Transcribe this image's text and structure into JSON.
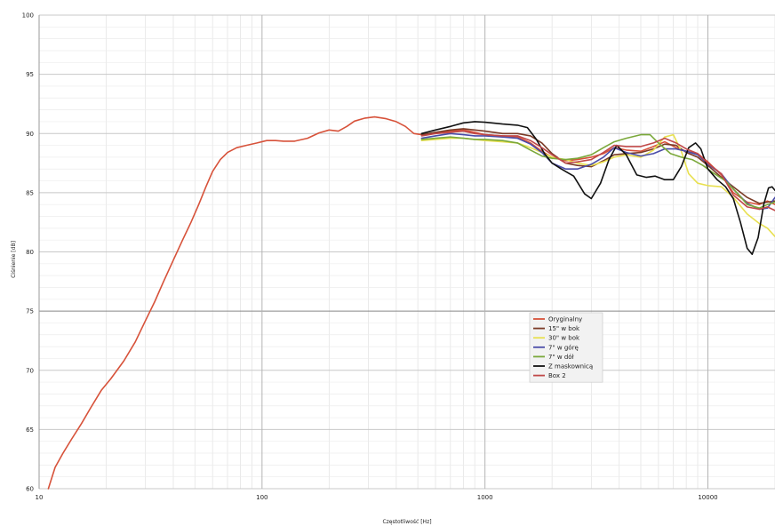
{
  "chart_data": {
    "type": "line",
    "xlabel": "Częstotliwość [Hz]",
    "ylabel": "Ciśnienie [dB]",
    "xscale": "log",
    "xlim": [
      10,
      20000
    ],
    "ylim": [
      60,
      100
    ],
    "x_ticks": [
      "10",
      "100",
      "1000",
      "10000"
    ],
    "y_ticks": [
      "60",
      "65",
      "70",
      "75",
      "80",
      "85",
      "90",
      "95",
      "100"
    ],
    "grid": true,
    "legend_position": "center-right",
    "series": [
      {
        "name": "Oryginalny",
        "color": "#d7523a",
        "points": [
          [
            11,
            60
          ],
          [
            11.8,
            61.8
          ],
          [
            12.8,
            63
          ],
          [
            14,
            64.2
          ],
          [
            15.5,
            65.5
          ],
          [
            17,
            66.8
          ],
          [
            19,
            68.3
          ],
          [
            21,
            69.3
          ],
          [
            24,
            70.8
          ],
          [
            27,
            72.4
          ],
          [
            30,
            74.2
          ],
          [
            33,
            75.8
          ],
          [
            36,
            77.4
          ],
          [
            40,
            79.3
          ],
          [
            44,
            81
          ],
          [
            48,
            82.5
          ],
          [
            52,
            84
          ],
          [
            56,
            85.5
          ],
          [
            60,
            86.8
          ],
          [
            65,
            87.8
          ],
          [
            70,
            88.4
          ],
          [
            77,
            88.8
          ],
          [
            85,
            89
          ],
          [
            95,
            89.2
          ],
          [
            105,
            89.4
          ],
          [
            115,
            89.4
          ],
          [
            125,
            89.35
          ],
          [
            140,
            89.35
          ],
          [
            160,
            89.6
          ],
          [
            180,
            90.05
          ],
          [
            200,
            90.3
          ],
          [
            220,
            90.2
          ],
          [
            240,
            90.6
          ],
          [
            260,
            91.05
          ],
          [
            290,
            91.3
          ],
          [
            320,
            91.4
          ],
          [
            360,
            91.25
          ],
          [
            400,
            91
          ],
          [
            440,
            90.6
          ],
          [
            480,
            90
          ],
          [
            520,
            89.9
          ],
          [
            600,
            90.05
          ],
          [
            700,
            90.2
          ],
          [
            800,
            90.3
          ],
          [
            900,
            90.1
          ],
          [
            1000,
            89.9
          ],
          [
            1200,
            89.8
          ],
          [
            1400,
            89.7
          ],
          [
            1600,
            89.2
          ],
          [
            1800,
            88.5
          ],
          [
            2000,
            88
          ],
          [
            2300,
            87.7
          ],
          [
            2600,
            87.8
          ],
          [
            3000,
            88
          ],
          [
            3400,
            88.3
          ],
          [
            3800,
            88.8
          ],
          [
            4300,
            88.6
          ],
          [
            5000,
            88.5
          ],
          [
            5700,
            88.9
          ],
          [
            6400,
            89.3
          ],
          [
            7200,
            88.8
          ],
          [
            8000,
            88.5
          ],
          [
            9000,
            88.3
          ],
          [
            10000,
            87.6
          ],
          [
            11500,
            86.5
          ],
          [
            13000,
            85
          ],
          [
            15000,
            84.2
          ],
          [
            17000,
            84
          ],
          [
            18500,
            84.3
          ],
          [
            20000,
            84
          ]
        ]
      },
      {
        "name": "15\" w bok",
        "color": "#7a3a26",
        "points": [
          [
            520,
            89.9
          ],
          [
            600,
            90.1
          ],
          [
            700,
            90.3
          ],
          [
            800,
            90.4
          ],
          [
            900,
            90.3
          ],
          [
            1000,
            90.2
          ],
          [
            1200,
            90
          ],
          [
            1400,
            90
          ],
          [
            1600,
            89.8
          ],
          [
            1800,
            89.2
          ],
          [
            2000,
            88.3
          ],
          [
            2300,
            87.5
          ],
          [
            2600,
            87.3
          ],
          [
            3000,
            87.2
          ],
          [
            3400,
            87.7
          ],
          [
            3800,
            88.2
          ],
          [
            4300,
            88.3
          ],
          [
            5000,
            88.4
          ],
          [
            5700,
            88.7
          ],
          [
            6400,
            89.1
          ],
          [
            7200,
            89
          ],
          [
            8000,
            88.4
          ],
          [
            9000,
            88
          ],
          [
            10000,
            87.3
          ],
          [
            11500,
            86.3
          ],
          [
            13000,
            85.5
          ],
          [
            15000,
            84.6
          ],
          [
            17000,
            84.1
          ],
          [
            18500,
            84.2
          ],
          [
            20000,
            84.3
          ]
        ]
      },
      {
        "name": "30\" w bok",
        "color": "#e8e050",
        "points": [
          [
            520,
            89.4
          ],
          [
            600,
            89.5
          ],
          [
            700,
            89.6
          ],
          [
            800,
            89.6
          ],
          [
            900,
            89.5
          ],
          [
            1000,
            89.4
          ],
          [
            1200,
            89.3
          ],
          [
            1400,
            89.2
          ],
          [
            1600,
            88.8
          ],
          [
            1800,
            88.4
          ],
          [
            2000,
            88
          ],
          [
            2300,
            87.8
          ],
          [
            2600,
            87.5
          ],
          [
            3000,
            87.3
          ],
          [
            3400,
            87.6
          ],
          [
            3800,
            88
          ],
          [
            4300,
            88.2
          ],
          [
            5000,
            88
          ],
          [
            5700,
            88.6
          ],
          [
            6400,
            89.7
          ],
          [
            7000,
            89.9
          ],
          [
            7600,
            88.5
          ],
          [
            8200,
            86.6
          ],
          [
            9000,
            85.8
          ],
          [
            10000,
            85.6
          ],
          [
            11500,
            85.5
          ],
          [
            13000,
            84.6
          ],
          [
            15000,
            83.2
          ],
          [
            17000,
            82.4
          ],
          [
            18500,
            82
          ],
          [
            20000,
            81.3
          ]
        ]
      },
      {
        "name": "7\" w górę",
        "color": "#4a4ca8",
        "points": [
          [
            520,
            89.6
          ],
          [
            600,
            89.8
          ],
          [
            700,
            90
          ],
          [
            800,
            89.9
          ],
          [
            900,
            89.8
          ],
          [
            1000,
            89.8
          ],
          [
            1200,
            89.7
          ],
          [
            1400,
            89.6
          ],
          [
            1600,
            89.1
          ],
          [
            1800,
            88.4
          ],
          [
            2000,
            87.5
          ],
          [
            2300,
            87
          ],
          [
            2600,
            87
          ],
          [
            3000,
            87.4
          ],
          [
            3400,
            88
          ],
          [
            3800,
            88.8
          ],
          [
            4300,
            88.4
          ],
          [
            5000,
            88.1
          ],
          [
            5700,
            88.3
          ],
          [
            6400,
            88.7
          ],
          [
            7200,
            88.7
          ],
          [
            8000,
            88.5
          ],
          [
            9000,
            88.2
          ],
          [
            10000,
            87.4
          ],
          [
            11500,
            86.6
          ],
          [
            13000,
            85.3
          ],
          [
            15000,
            84.1
          ],
          [
            17000,
            83.6
          ],
          [
            18500,
            83.7
          ],
          [
            20000,
            84.6
          ]
        ]
      },
      {
        "name": "7\" w dół",
        "color": "#7aa83a",
        "points": [
          [
            520,
            89.5
          ],
          [
            600,
            89.6
          ],
          [
            700,
            89.7
          ],
          [
            800,
            89.6
          ],
          [
            900,
            89.5
          ],
          [
            1000,
            89.5
          ],
          [
            1200,
            89.4
          ],
          [
            1400,
            89.2
          ],
          [
            1600,
            88.6
          ],
          [
            1800,
            88.1
          ],
          [
            2000,
            87.9
          ],
          [
            2300,
            87.8
          ],
          [
            2600,
            87.9
          ],
          [
            3000,
            88.2
          ],
          [
            3400,
            88.8
          ],
          [
            3800,
            89.3
          ],
          [
            4300,
            89.6
          ],
          [
            5000,
            89.9
          ],
          [
            5500,
            89.9
          ],
          [
            6000,
            89.2
          ],
          [
            6800,
            88.3
          ],
          [
            7600,
            88
          ],
          [
            8500,
            87.8
          ],
          [
            9500,
            87.3
          ],
          [
            10500,
            86.7
          ],
          [
            12000,
            86
          ],
          [
            13500,
            85
          ],
          [
            15000,
            84
          ],
          [
            17000,
            83.7
          ],
          [
            18500,
            84
          ],
          [
            20000,
            84.2
          ]
        ]
      },
      {
        "name": "Z maskownicą",
        "color": "#111111",
        "points": [
          [
            520,
            90
          ],
          [
            600,
            90.3
          ],
          [
            700,
            90.6
          ],
          [
            800,
            90.9
          ],
          [
            900,
            91
          ],
          [
            1000,
            90.95
          ],
          [
            1200,
            90.8
          ],
          [
            1400,
            90.7
          ],
          [
            1550,
            90.5
          ],
          [
            1700,
            89.5
          ],
          [
            1850,
            88.3
          ],
          [
            2000,
            87.5
          ],
          [
            2200,
            87
          ],
          [
            2500,
            86.4
          ],
          [
            2800,
            84.9
          ],
          [
            3000,
            84.5
          ],
          [
            3300,
            85.8
          ],
          [
            3600,
            87.8
          ],
          [
            3900,
            89
          ],
          [
            4300,
            88.2
          ],
          [
            4800,
            86.5
          ],
          [
            5300,
            86.3
          ],
          [
            5800,
            86.4
          ],
          [
            6400,
            86.1
          ],
          [
            7000,
            86.1
          ],
          [
            7600,
            87.2
          ],
          [
            8200,
            88.8
          ],
          [
            8800,
            89.2
          ],
          [
            9300,
            88.7
          ],
          [
            10000,
            87
          ],
          [
            11000,
            86.1
          ],
          [
            12000,
            85.5
          ],
          [
            13000,
            84.5
          ],
          [
            14000,
            82.5
          ],
          [
            15000,
            80.3
          ],
          [
            15800,
            79.8
          ],
          [
            16800,
            81.2
          ],
          [
            17800,
            84
          ],
          [
            18700,
            85.4
          ],
          [
            19400,
            85.5
          ],
          [
            20000,
            85.2
          ]
        ]
      },
      {
        "name": "Box 2",
        "color": "#c04848",
        "points": [
          [
            520,
            89.8
          ],
          [
            600,
            90
          ],
          [
            700,
            90.1
          ],
          [
            800,
            90.2
          ],
          [
            900,
            90
          ],
          [
            1000,
            89.9
          ],
          [
            1200,
            89.8
          ],
          [
            1400,
            89.8
          ],
          [
            1600,
            89.4
          ],
          [
            1800,
            88.8
          ],
          [
            2000,
            88.2
          ],
          [
            2300,
            87.5
          ],
          [
            2600,
            87.6
          ],
          [
            3000,
            87.8
          ],
          [
            3400,
            88.4
          ],
          [
            3800,
            89
          ],
          [
            4300,
            88.9
          ],
          [
            5000,
            88.9
          ],
          [
            5700,
            89.2
          ],
          [
            6400,
            89.6
          ],
          [
            7200,
            89.2
          ],
          [
            8000,
            88.7
          ],
          [
            9000,
            88.3
          ],
          [
            10000,
            87.5
          ],
          [
            11500,
            86.6
          ],
          [
            13000,
            84.8
          ],
          [
            15000,
            83.8
          ],
          [
            17000,
            83.6
          ],
          [
            18500,
            83.8
          ],
          [
            20000,
            83.5
          ]
        ]
      }
    ]
  }
}
